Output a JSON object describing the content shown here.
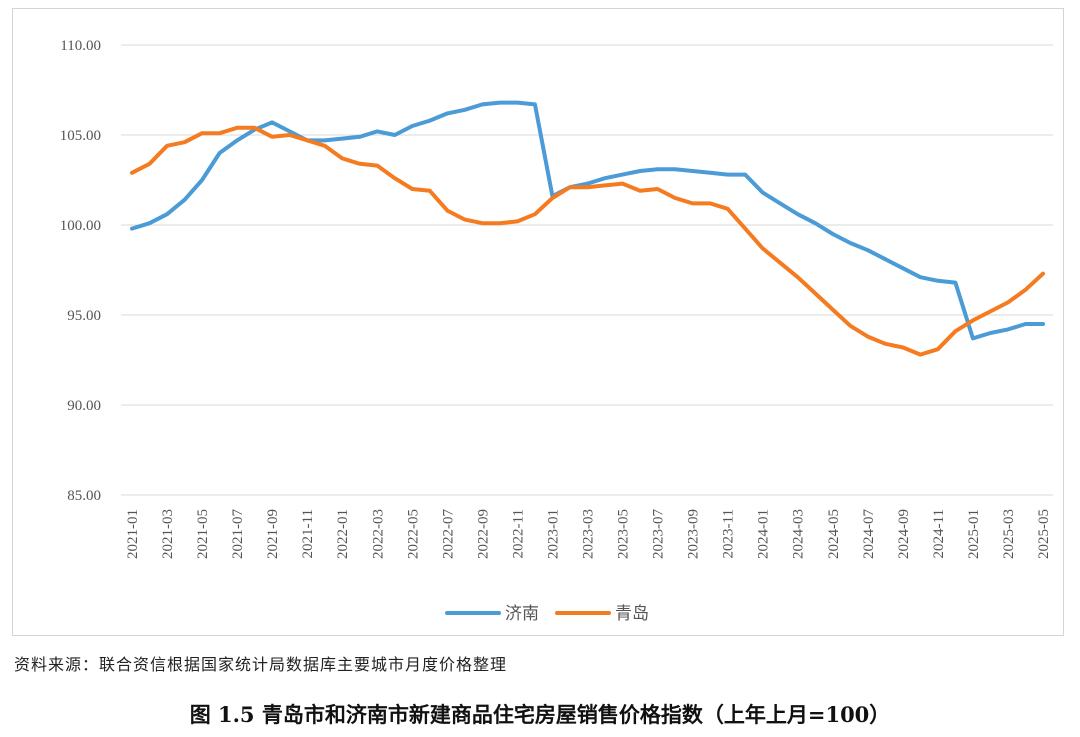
{
  "source_note": "资料来源：联合资信根据国家统计局数据库主要城市月度价格整理",
  "caption": "图 1.5   青岛市和济南市新建商品住宅房屋销售价格指数（上年上月=100）",
  "chart_data": {
    "type": "line",
    "title": "",
    "xlabel": "",
    "ylabel": "",
    "ylim": [
      85,
      110
    ],
    "yticks": [
      "85.00",
      "90.00",
      "95.00",
      "100.00",
      "105.00",
      "110.00"
    ],
    "grid": true,
    "legend": "bottom",
    "x": [
      "2021-01",
      "2021-02",
      "2021-03",
      "2021-04",
      "2021-05",
      "2021-06",
      "2021-07",
      "2021-08",
      "2021-09",
      "2021-10",
      "2021-11",
      "2021-12",
      "2022-01",
      "2022-02",
      "2022-03",
      "2022-04",
      "2022-05",
      "2022-06",
      "2022-07",
      "2022-08",
      "2022-09",
      "2022-10",
      "2022-11",
      "2022-12",
      "2023-01",
      "2023-02",
      "2023-03",
      "2023-04",
      "2023-05",
      "2023-06",
      "2023-07",
      "2023-08",
      "2023-09",
      "2023-10",
      "2023-11",
      "2023-12",
      "2024-01",
      "2024-02",
      "2024-03",
      "2024-04",
      "2024-05",
      "2024-06",
      "2024-07",
      "2024-08",
      "2024-09",
      "2024-10",
      "2024-11",
      "2024-12",
      "2025-01",
      "2025-02",
      "2025-03",
      "2025-04",
      "2025-05"
    ],
    "xtick_labels": [
      "2021-01",
      "2021-03",
      "2021-05",
      "2021-07",
      "2021-09",
      "2021-11",
      "2022-01",
      "2022-03",
      "2022-05",
      "2022-07",
      "2022-09",
      "2022-11",
      "2023-01",
      "2023-03",
      "2023-05",
      "2023-07",
      "2023-09",
      "2023-11",
      "2024-01",
      "2024-03",
      "2024-05",
      "2024-07",
      "2024-09",
      "2024-11",
      "2025-01",
      "2025-03",
      "2025-05"
    ],
    "series": [
      {
        "name": "济南",
        "color": "#4a9bd6",
        "values": [
          99.8,
          100.1,
          100.6,
          101.4,
          102.5,
          104.0,
          104.7,
          105.3,
          105.7,
          105.2,
          104.7,
          104.7,
          104.8,
          104.9,
          105.2,
          105.0,
          105.5,
          105.8,
          106.2,
          106.4,
          106.7,
          106.8,
          106.8,
          106.7,
          101.6,
          102.1,
          102.3,
          102.6,
          102.8,
          103.0,
          103.1,
          103.1,
          103.0,
          102.9,
          102.8,
          102.8,
          101.8,
          101.2,
          100.6,
          100.1,
          99.5,
          99.0,
          98.6,
          98.1,
          97.6,
          97.1,
          96.9,
          96.8,
          93.7,
          94.0,
          94.2,
          94.5,
          94.5
        ]
      },
      {
        "name": "青岛",
        "color": "#f47b20",
        "values": [
          102.9,
          103.4,
          104.4,
          104.6,
          105.1,
          105.1,
          105.4,
          105.4,
          104.9,
          105.0,
          104.7,
          104.4,
          103.7,
          103.4,
          103.3,
          102.6,
          102.0,
          101.9,
          100.8,
          100.3,
          100.1,
          100.1,
          100.2,
          100.6,
          101.5,
          102.1,
          102.1,
          102.2,
          102.3,
          101.9,
          102.0,
          101.5,
          101.2,
          101.2,
          100.9,
          99.8,
          98.7,
          97.9,
          97.1,
          96.2,
          95.3,
          94.4,
          93.8,
          93.4,
          93.2,
          92.8,
          93.1,
          94.1,
          94.7,
          95.2,
          95.7,
          96.4,
          97.3
        ]
      }
    ]
  }
}
